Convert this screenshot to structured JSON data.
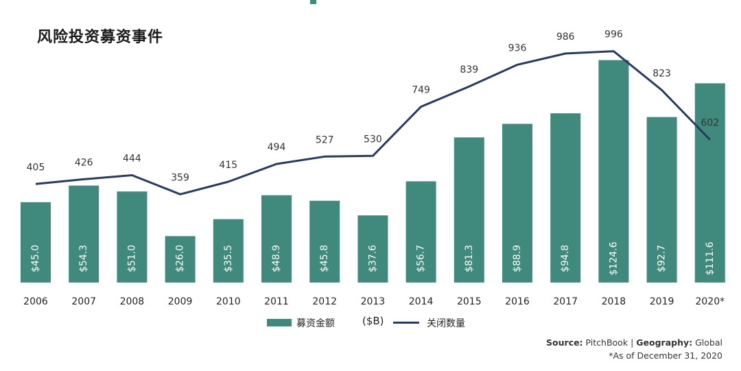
{
  "title": "风险投资募资事件",
  "colors": {
    "bar": "#3f8a7c",
    "line": "#283a5e",
    "bar_label": "#ffffff",
    "text": "#222222"
  },
  "legend": {
    "bar_label": "募资金额",
    "unit": "($B)",
    "line_label": "关闭数量"
  },
  "source": {
    "source_label": "Source:",
    "source_value": "PitchBook",
    "separator": "|",
    "geo_label": "Geography:",
    "geo_value": "Global"
  },
  "footnote": "*As of December 31, 2020",
  "chart_data": {
    "type": "bar",
    "title": "风险投资募资事件",
    "categories": [
      "2006",
      "2007",
      "2008",
      "2009",
      "2010",
      "2011",
      "2012",
      "2013",
      "2014",
      "2015",
      "2016",
      "2017",
      "2018",
      "2019",
      "2020*"
    ],
    "series": [
      {
        "name": "募资金额",
        "type": "bar",
        "values": [
          45.0,
          54.3,
          51.0,
          26.0,
          35.5,
          48.9,
          45.8,
          37.6,
          56.7,
          81.3,
          88.9,
          94.8,
          124.6,
          92.7,
          111.6
        ],
        "labels": [
          "$45.0",
          "$54.3",
          "$51.0",
          "$26.0",
          "$35.5",
          "$48.9",
          "$45.8",
          "$37.6",
          "$56.7",
          "$81.3",
          "$88.9",
          "$94.8",
          "$124.6",
          "$92.7",
          "$111.6"
        ]
      },
      {
        "name": "关闭数量",
        "type": "line",
        "values": [
          405,
          426,
          444,
          359,
          415,
          494,
          527,
          530,
          749,
          839,
          936,
          986,
          996,
          823,
          602
        ],
        "labels": [
          "405",
          "426",
          "444",
          "359",
          "415",
          "494",
          "527",
          "530",
          "749",
          "839",
          "936",
          "986",
          "996",
          "823",
          "602"
        ]
      }
    ],
    "bar_ylim": [
      0,
      126
    ],
    "line_ylim": [
      -34,
      1041
    ],
    "grid": false,
    "legend_position": "bottom"
  }
}
